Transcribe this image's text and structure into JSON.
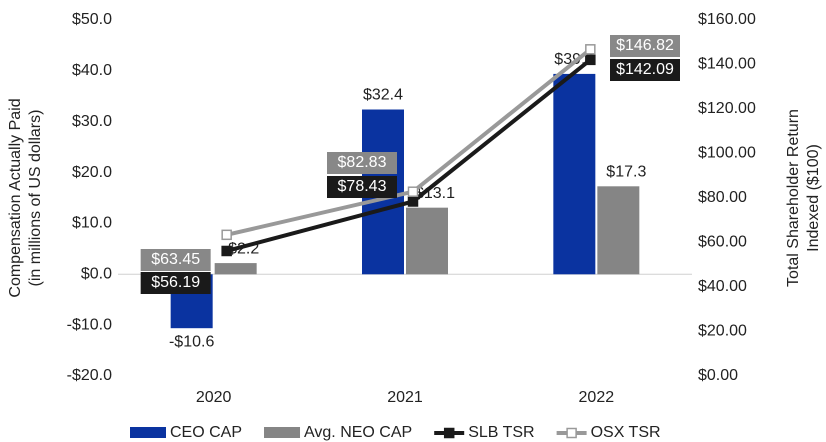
{
  "chart_data": {
    "type": "bar_line",
    "categories": [
      "2020",
      "2021",
      "2022"
    ],
    "series": [
      {
        "name": "CEO CAP",
        "type": "bar",
        "color": "#0a33a0",
        "values": [
          -10.6,
          32.4,
          39.4
        ],
        "value_labels": [
          "-$10.6",
          "$32.4",
          "$39.4"
        ]
      },
      {
        "name": "Avg. NEO CAP",
        "type": "bar",
        "color": "#858585",
        "values": [
          2.2,
          13.1,
          17.3
        ],
        "value_labels": [
          "$2.2",
          "$13.1",
          "$17.3"
        ]
      },
      {
        "name": "SLB TSR",
        "type": "line",
        "axis": "y2",
        "color": "#1a1a1a",
        "marker_fill": "#1a1a1a",
        "values": [
          56.19,
          78.43,
          142.09
        ],
        "value_labels": [
          "$56.19",
          "$78.43",
          "$142.09"
        ]
      },
      {
        "name": "OSX TSR",
        "type": "line",
        "axis": "y2",
        "color": "#999999",
        "marker_fill": "#ffffff",
        "values": [
          63.45,
          82.83,
          146.82
        ],
        "value_labels": [
          "$63.45",
          "$82.83",
          "$146.82"
        ]
      }
    ],
    "ylabel": [
      "Compensation Actually Paid",
      "(in millions of US dollars)"
    ],
    "y2label": [
      "Total Shareholder Return",
      "Indexed ($100)"
    ],
    "ylim": [
      -20,
      50
    ],
    "yticks": [
      {
        "value": -20,
        "label": "-$20.0"
      },
      {
        "value": -10,
        "label": "-$10.0"
      },
      {
        "value": 0,
        "label": "$0.0"
      },
      {
        "value": 10,
        "label": "$10.0"
      },
      {
        "value": 20,
        "label": "$20.0"
      },
      {
        "value": 30,
        "label": "$30.0"
      },
      {
        "value": 40,
        "label": "$40.0"
      },
      {
        "value": 50,
        "label": "$50.0"
      }
    ],
    "y2lim": [
      0,
      160
    ],
    "y2ticks": [
      {
        "value": 0,
        "label": "$0.00"
      },
      {
        "value": 20,
        "label": "$20.00"
      },
      {
        "value": 40,
        "label": "$40.00"
      },
      {
        "value": 60,
        "label": "$60.00"
      },
      {
        "value": 80,
        "label": "$80.00"
      },
      {
        "value": 100,
        "label": "$100.00"
      },
      {
        "value": 120,
        "label": "$120.00"
      },
      {
        "value": 140,
        "label": "$140.00"
      },
      {
        "value": 160,
        "label": "$160.00"
      }
    ],
    "legend": "bottom"
  }
}
